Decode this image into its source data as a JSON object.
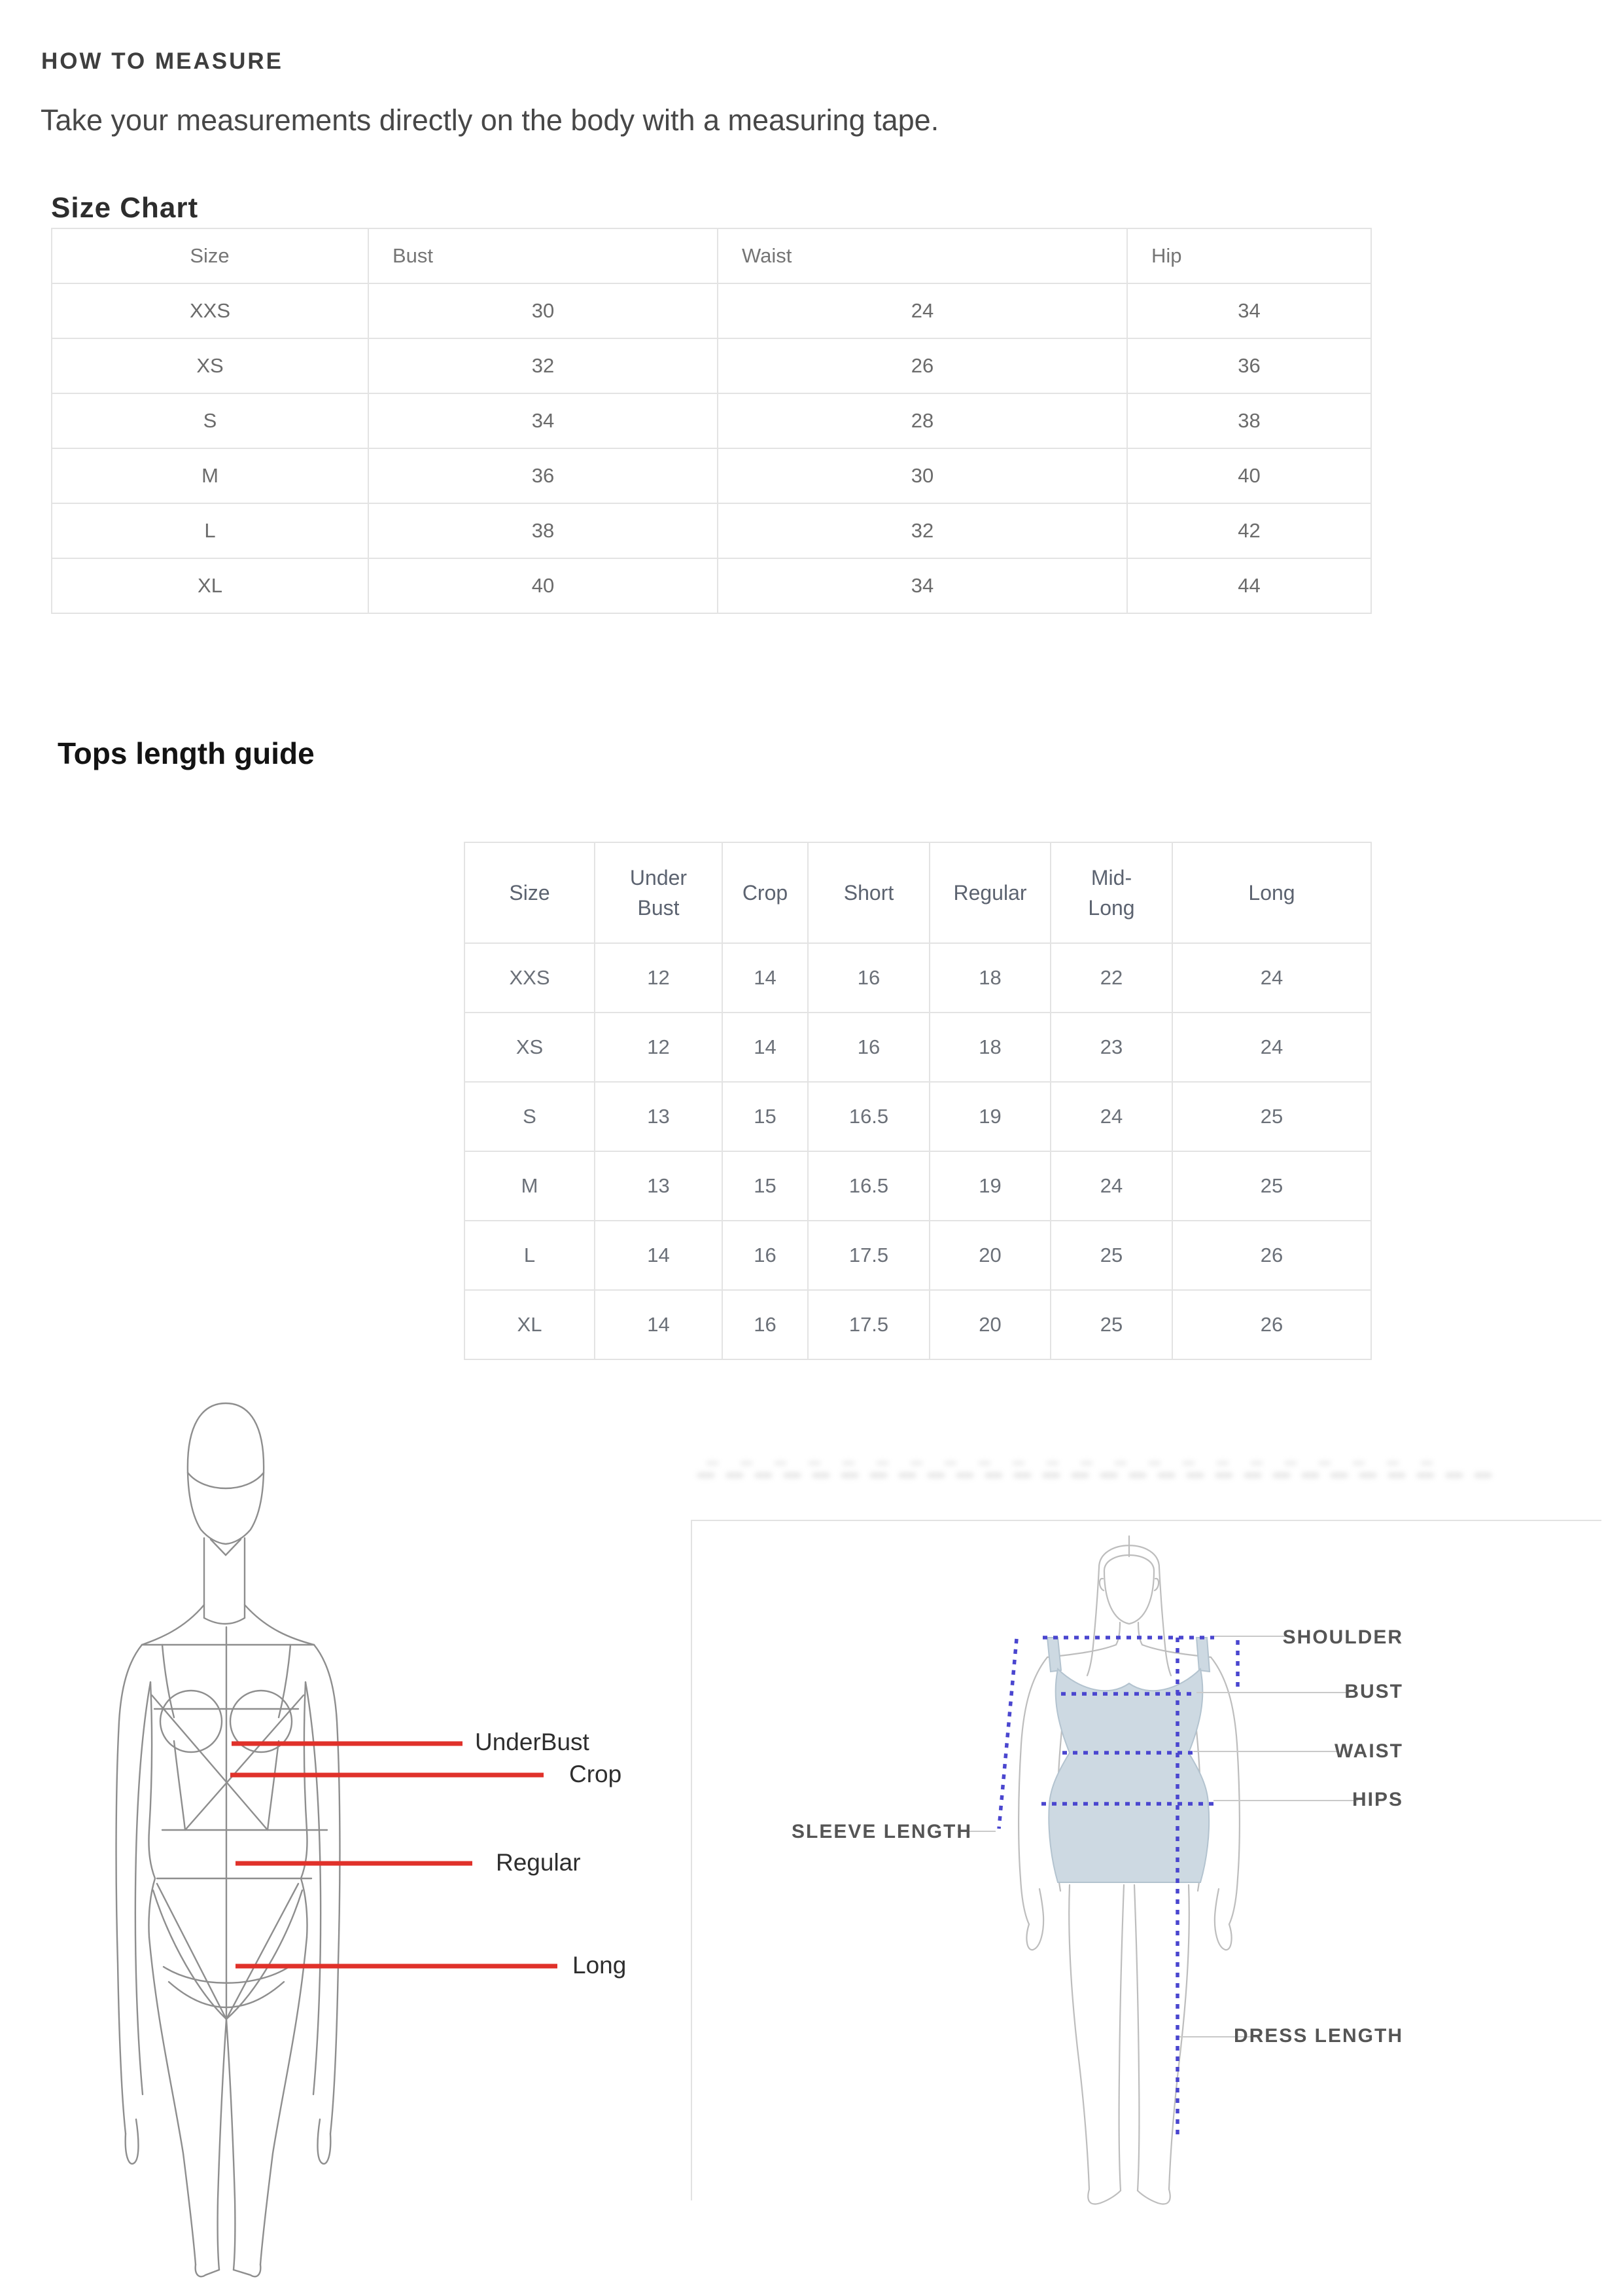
{
  "header": {
    "title": "HOW TO MEASURE",
    "subtitle": "Take your measurements directly on the body with a measuring tape."
  },
  "size_chart": {
    "title": "Size Chart",
    "columns": [
      "Size",
      "Bust",
      "Waist",
      "Hip"
    ],
    "rows": [
      [
        "XXS",
        "30",
        "24",
        "34"
      ],
      [
        "XS",
        "32",
        "26",
        "36"
      ],
      [
        "S",
        "34",
        "28",
        "38"
      ],
      [
        "M",
        "36",
        "30",
        "40"
      ],
      [
        "L",
        "38",
        "32",
        "42"
      ],
      [
        "XL",
        "40",
        "34",
        "44"
      ]
    ]
  },
  "tops_length_guide": {
    "title": "Tops length guide",
    "columns": [
      "Size",
      "Under\nBust",
      "Crop",
      "Short",
      "Regular",
      "Mid-\nLong",
      "Long"
    ],
    "rows": [
      [
        "XXS",
        "12",
        "14",
        "16",
        "18",
        "22",
        "24"
      ],
      [
        "XS",
        "12",
        "14",
        "16",
        "18",
        "23",
        "24"
      ],
      [
        "S",
        "13",
        "15",
        "16.5",
        "19",
        "24",
        "25"
      ],
      [
        "M",
        "13",
        "15",
        "16.5",
        "19",
        "24",
        "25"
      ],
      [
        "L",
        "14",
        "16",
        "17.5",
        "20",
        "25",
        "26"
      ],
      [
        "XL",
        "14",
        "16",
        "17.5",
        "20",
        "25",
        "26"
      ]
    ]
  },
  "length_diagram": {
    "labels": {
      "underbust": "UnderBust",
      "crop": "Crop",
      "regular": "Regular",
      "long": "Long"
    },
    "line_color": "#e0312a"
  },
  "measure_diagram": {
    "labels": {
      "shoulder": "SHOULDER",
      "bust": "BUST",
      "waist": "WAIST",
      "hips": "HIPS",
      "sleeve_length": "SLEEVE LENGTH",
      "dress_length": "DRESS LENGTH"
    },
    "dash_color": "#4a46cf",
    "dress_color": "#cdd9e2"
  }
}
